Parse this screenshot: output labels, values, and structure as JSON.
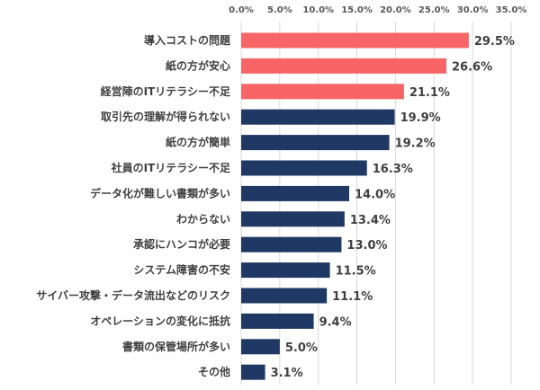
{
  "chart_data": {
    "type": "bar",
    "orientation": "horizontal",
    "title": "",
    "xlabel": "",
    "ylabel": "",
    "xlim": [
      0,
      35
    ],
    "ticks": [
      0,
      5,
      10,
      15,
      20,
      25,
      30,
      35
    ],
    "tick_labels": [
      "0.0%",
      "5.0%",
      "10.0%",
      "15.0%",
      "20.0%",
      "25.0%",
      "30.0%",
      "35.0%"
    ],
    "grid": true,
    "legend": "none",
    "categories": [
      "導入コストの問題",
      "紙の方が安心",
      "経営陣のITリテラシー不足",
      "取引先の理解が得られない",
      "紙の方が簡単",
      "社員のITリテラシー不足",
      "データ化が難しい書類が多い",
      "わからない",
      "承認にハンコが必要",
      "システム障害の不安",
      "サイバー攻撃・データ流出などのリスク",
      "オペレーションの変化に抵抗",
      "書類の保管場所が多い",
      "その他"
    ],
    "values": [
      29.5,
      26.6,
      21.1,
      19.9,
      19.2,
      16.3,
      14.0,
      13.4,
      13.0,
      11.5,
      11.1,
      9.4,
      5.0,
      3.1
    ],
    "value_labels": [
      "29.5%",
      "26.6%",
      "21.1%",
      "19.9%",
      "19.2%",
      "16.3%",
      "14.0%",
      "13.4%",
      "13.0%",
      "11.5%",
      "11.1%",
      "9.4%",
      "5.0%",
      "3.1%"
    ],
    "highlight_count": 3,
    "colors": {
      "highlight": "#f86567",
      "normal": "#203864",
      "grid": "#d9d9d9",
      "text": "#404040"
    }
  }
}
